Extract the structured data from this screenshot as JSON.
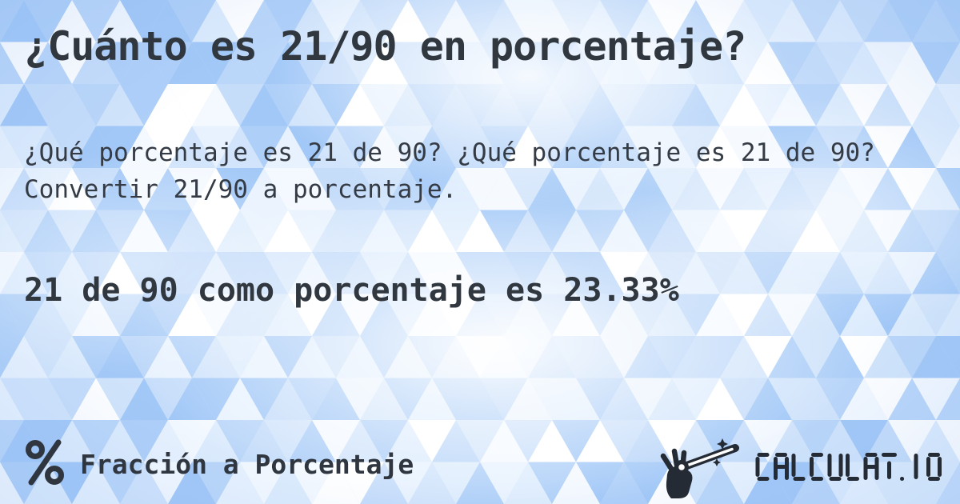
{
  "page": {
    "title": "¿Cuánto es 21/90 en porcentaje?",
    "description": "¿Qué porcentaje es 21 de 90? ¿Qué porcentaje es 21 de 90? Convertir 21/90 a porcentaje.",
    "answer": "21 de 90 como porcentaje es 23.33%"
  },
  "footer": {
    "category_label": "Fracción a Porcentaje",
    "category_icon": "percent-icon",
    "brand": "CALCULAT.IO",
    "brand_icon": "magic-wand-hand-icon"
  },
  "colors": {
    "text_dark": "#30373f",
    "logo_dark": "#242b34",
    "background_blues": [
      "#a2c8f7",
      "#aecff8",
      "#bad6f9",
      "#c6ddfa",
      "#d1e4fb",
      "#ddecfd",
      "#e8f2fe",
      "#f4f9ff",
      "#ffffff"
    ]
  }
}
